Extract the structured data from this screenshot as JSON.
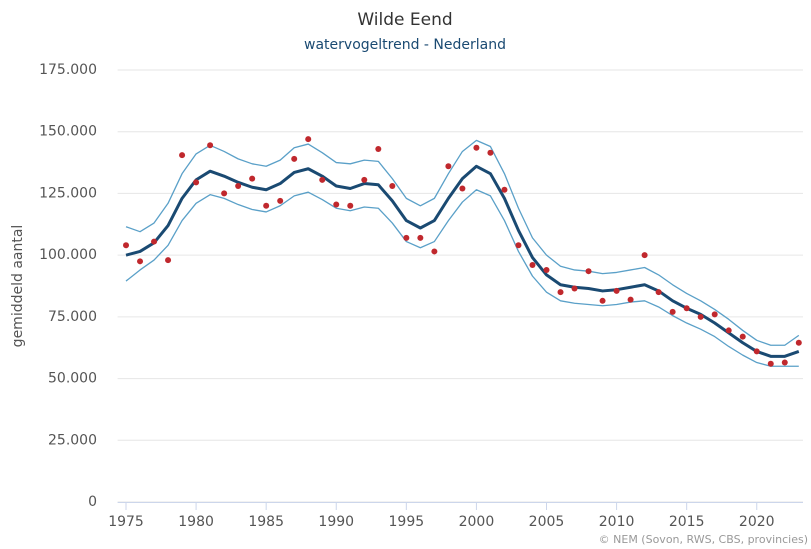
{
  "chart_data": {
    "type": "line",
    "title": "Wilde Eend",
    "subtitle": "watervogeltrend - Nederland",
    "y_label": "gemiddeld aantal",
    "credit": "© NEM (Sovon, RWS, CBS, provincies)",
    "x": [
      1975,
      1976,
      1977,
      1978,
      1979,
      1980,
      1981,
      1982,
      1983,
      1984,
      1985,
      1986,
      1987,
      1988,
      1989,
      1990,
      1991,
      1992,
      1993,
      1994,
      1995,
      1996,
      1997,
      1998,
      1999,
      2000,
      2001,
      2002,
      2003,
      2004,
      2005,
      2006,
      2007,
      2008,
      2009,
      2010,
      2011,
      2012,
      2013,
      2014,
      2015,
      2016,
      2017,
      2018,
      2019,
      2020,
      2021,
      2022,
      2023
    ],
    "xlim": [
      1974.4,
      2023.3
    ],
    "xticks": [
      1975,
      1980,
      1985,
      1990,
      1995,
      2000,
      2005,
      2010,
      2015,
      2020
    ],
    "ylim": [
      0,
      175000
    ],
    "yticks": [
      0,
      {
        "value": 25000,
        "label": "25.000"
      },
      {
        "value": 50000,
        "label": "50.000"
      },
      {
        "value": 75000,
        "label": "75.000"
      },
      {
        "value": 100000,
        "label": "100.000"
      },
      {
        "value": 125000,
        "label": "125.000"
      },
      {
        "value": 150000,
        "label": "150.000"
      },
      {
        "value": 175000,
        "label": "175.000"
      }
    ],
    "grid": true,
    "series": [
      {
        "color": "#5aa0c8",
        "mode": "line",
        "width": 1.3,
        "values": [
          111500,
          109500,
          113000,
          121000,
          133000,
          141000,
          144500,
          142000,
          139000,
          137000,
          136000,
          138500,
          143500,
          145000,
          141500,
          137500,
          137000,
          138500,
          138000,
          131000,
          123000,
          120000,
          123000,
          133000,
          142000,
          146500,
          144000,
          133000,
          119000,
          107000,
          100000,
          95500,
          94000,
          93500,
          92500,
          93000,
          94000,
          95000,
          92000,
          88000,
          84500,
          81500,
          78000,
          74000,
          69500,
          65500,
          63500,
          63500,
          67500
        ]
      },
      {
        "color": "#5aa0c8",
        "mode": "line",
        "width": 1.3,
        "values": [
          89500,
          94000,
          98000,
          104000,
          114000,
          121000,
          124500,
          123000,
          120500,
          118500,
          117500,
          120000,
          124000,
          125500,
          122500,
          119000,
          118000,
          119500,
          119000,
          113000,
          105500,
          103000,
          105500,
          114000,
          121500,
          126500,
          124000,
          114000,
          101500,
          91500,
          85000,
          81500,
          80500,
          80000,
          79500,
          80000,
          81000,
          81500,
          79000,
          75500,
          72500,
          70000,
          67000,
          63000,
          59500,
          56500,
          55000,
          55000,
          55000
        ]
      },
      {
        "color": "#1a4a72",
        "mode": "line",
        "width": 3,
        "values": [
          100000,
          101500,
          105000,
          112000,
          123000,
          130500,
          134000,
          132000,
          129500,
          127500,
          126500,
          129000,
          133500,
          135000,
          132000,
          128000,
          127000,
          129000,
          128500,
          122000,
          114000,
          111000,
          114000,
          123000,
          131000,
          136000,
          133000,
          123000,
          110000,
          99000,
          92000,
          88000,
          87000,
          86500,
          85500,
          86000,
          87000,
          88000,
          85500,
          81500,
          78500,
          76000,
          72500,
          68500,
          64500,
          61000,
          59000,
          59000,
          61000
        ]
      },
      {
        "color": "#c0282d",
        "mode": "markers",
        "width": 0,
        "values": [
          104000,
          97500,
          105500,
          98000,
          140500,
          129500,
          144500,
          125000,
          128000,
          131000,
          120000,
          122000,
          139000,
          147000,
          130500,
          120500,
          120000,
          130500,
          143000,
          128000,
          107000,
          107000,
          101500,
          136000,
          127000,
          143500,
          141500,
          126500,
          104000,
          96000,
          94000,
          85000,
          86500,
          93500,
          81500,
          85500,
          82000,
          100000,
          85000,
          77000,
          78500,
          75000,
          76000,
          69500,
          67000,
          61000,
          56000,
          56500,
          64500
        ]
      }
    ]
  }
}
